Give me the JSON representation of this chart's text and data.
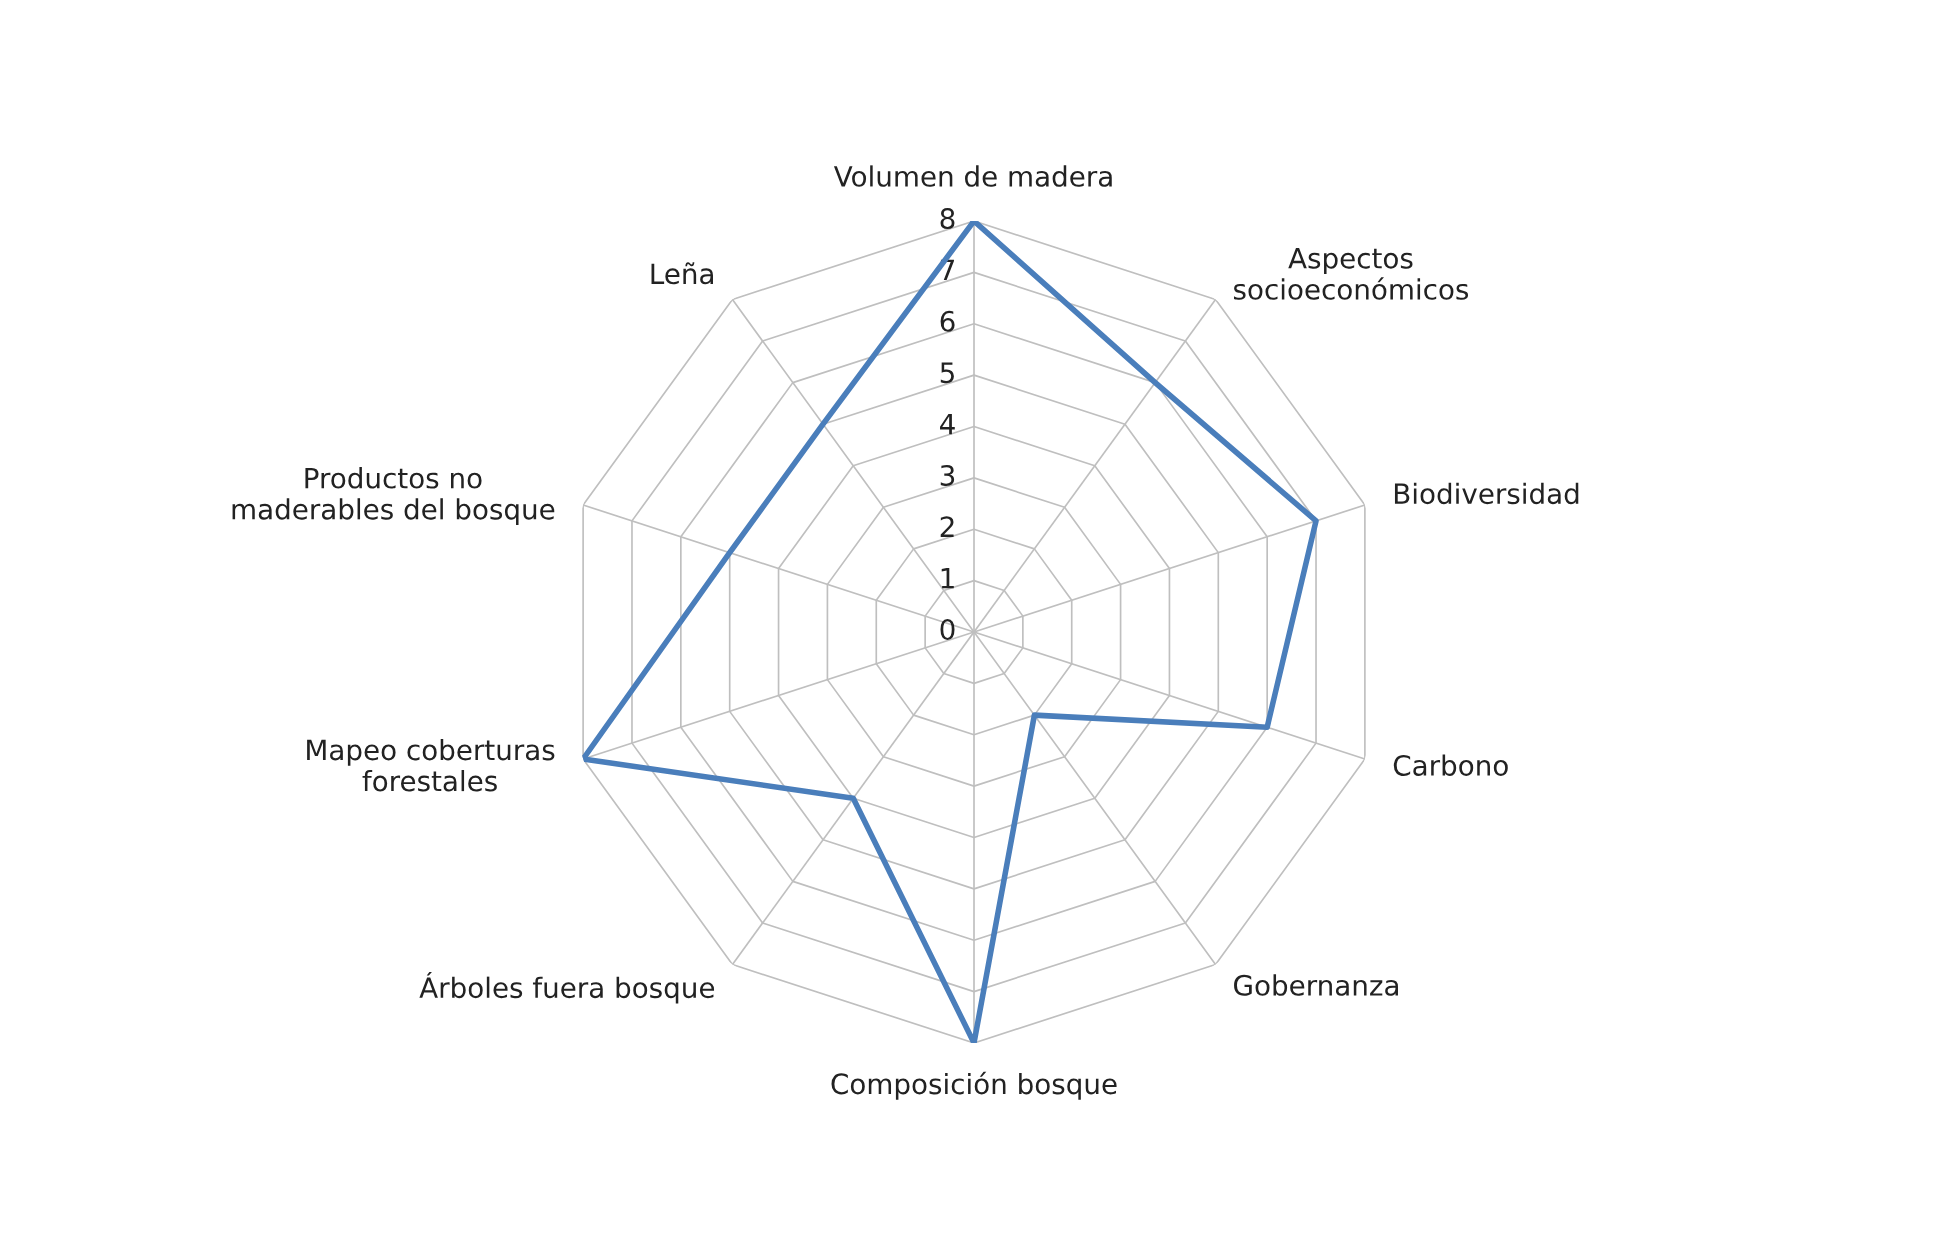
{
  "chart_data": {
    "type": "radar",
    "categories": [
      "Volumen de madera",
      "Aspectos\nsocioeconómicos",
      "Biodiversidad",
      "Carbono",
      "Gobernanza",
      "Composición bosque",
      "Árboles fuera bosque",
      "Mapeo coberturas\nforestales",
      "Productos no\nmaderables del bosque",
      "Leña"
    ],
    "series": [
      {
        "color": "#4a7ebb",
        "values": [
          8,
          6,
          7,
          6,
          2,
          8,
          4,
          8,
          5,
          5
        ]
      }
    ],
    "ylim": [
      0,
      8
    ],
    "yticks": [
      0,
      1,
      2,
      3,
      4,
      5,
      6,
      7,
      8
    ],
    "grid": true,
    "marker": "none",
    "line_style": "solid"
  }
}
